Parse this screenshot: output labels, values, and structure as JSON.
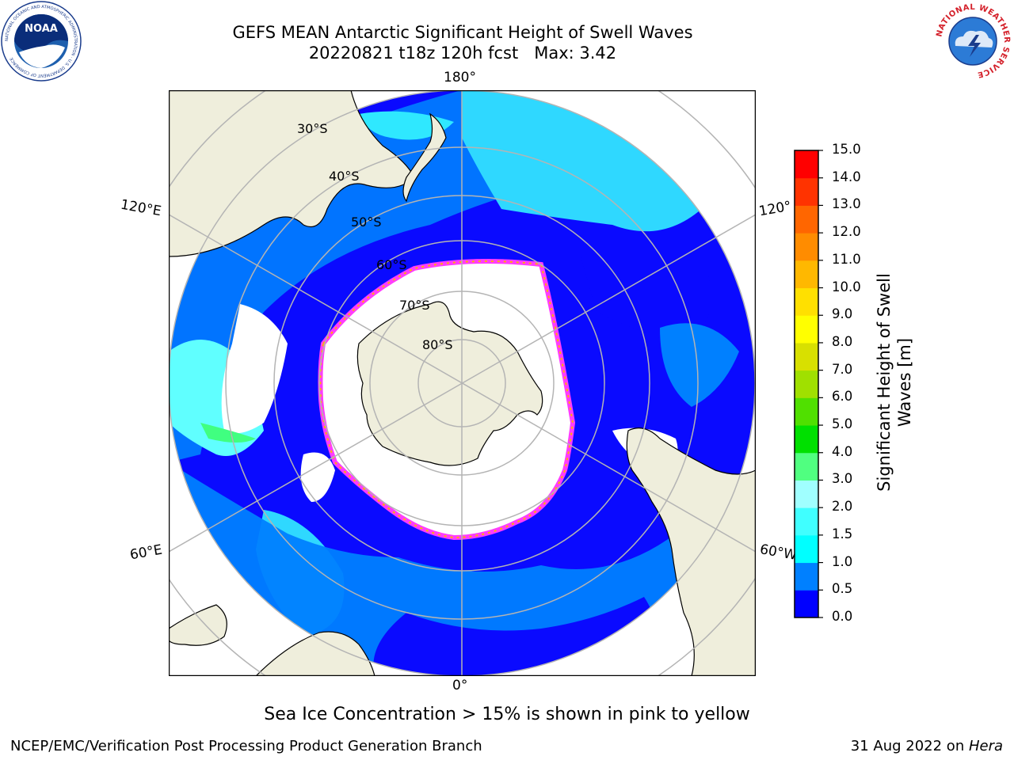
{
  "title": {
    "line1": "GEFS MEAN Antarctic Significant Height of Swell Waves",
    "line2": "20220821 t18z 120h fcst   Max: 3.42"
  },
  "map": {
    "projection": "south-polar-stereographic",
    "longitude_labels": {
      "top": "180°",
      "bottom": "0°",
      "left_upper": "120°E",
      "left_lower": "60°E",
      "right_upper": "120°",
      "right_lower": "60°W"
    },
    "latitude_labels": [
      "30°S",
      "40°S",
      "50°S",
      "60°S",
      "70°S",
      "80°S"
    ],
    "colors": {
      "land": "#efeedc",
      "ice_interior": "#ffffff",
      "grid": "#b4b4b4"
    }
  },
  "colorbar": {
    "label_line1": "Significant Height of Swell",
    "label_line2": "Waves [m]",
    "ticks": [
      "0.0",
      "0.5",
      "1.0",
      "1.5",
      "2.0",
      "3.0",
      "4.0",
      "5.0",
      "6.0",
      "7.0",
      "8.0",
      "9.0",
      "10.0",
      "11.0",
      "12.0",
      "13.0",
      "14.0",
      "15.0"
    ],
    "colors": [
      "#0000ff",
      "#0080ff",
      "#00ffff",
      "#40ffff",
      "#a0ffff",
      "#50ff80",
      "#00e000",
      "#50e000",
      "#a0e000",
      "#d8e000",
      "#ffff00",
      "#ffe000",
      "#ffb800",
      "#ff8c00",
      "#ff6600",
      "#ff3300",
      "#ff0000"
    ]
  },
  "note": "Sea Ice Concentration > 15% is shown in pink to yellow",
  "footer": {
    "left": "NCEP/EMC/Verification Post Processing Product Generation Branch",
    "date": "31 Aug 2022 on ",
    "host": "Hera"
  },
  "logos": {
    "left": "NOAA",
    "left_ring_text": "NATIONAL OCEANIC AND ATMOSPHERIC ADMINISTRATION · U.S. DEPARTMENT OF COMMERCE",
    "right_ring_text": "NATIONAL WEATHER SERVICE"
  }
}
